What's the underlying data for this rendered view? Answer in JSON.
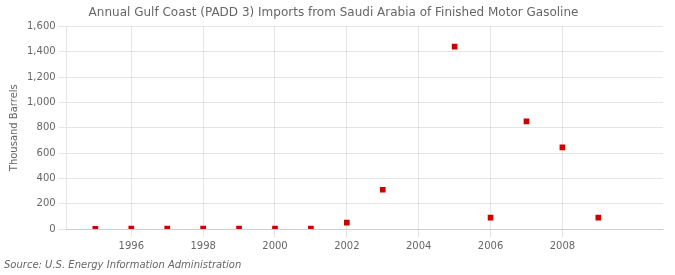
{
  "chart_data": {
    "type": "scatter",
    "title": "Annual Gulf Coast (PADD 3) Imports from Saudi Arabia of Finished Motor Gasoline",
    "ylabel": "Thousand Barrels",
    "source": "Source: U.S. Energy Information Administration",
    "x": [
      1995,
      1996,
      1997,
      1998,
      1999,
      2000,
      2001,
      2002,
      2003,
      2005,
      2006,
      2007,
      2008,
      2009
    ],
    "values": [
      2,
      3,
      3,
      3,
      3,
      3,
      3,
      50,
      310,
      1440,
      90,
      850,
      645,
      90
    ],
    "color": "#cc0000",
    "marker": "square",
    "xlim": [
      1994.2,
      2010.8
    ],
    "xticks": [
      1996,
      1998,
      2000,
      2002,
      2004,
      2006,
      2008
    ],
    "ylim": [
      0,
      1600
    ],
    "yticks": [
      0,
      200,
      400,
      600,
      800,
      {
        "value": 1000,
        "label": "1,000"
      },
      {
        "value": 1200,
        "label": "1,200"
      },
      {
        "value": 1400,
        "label": "1,400"
      },
      {
        "value": 1600,
        "label": "1,600"
      }
    ],
    "grid": true
  }
}
